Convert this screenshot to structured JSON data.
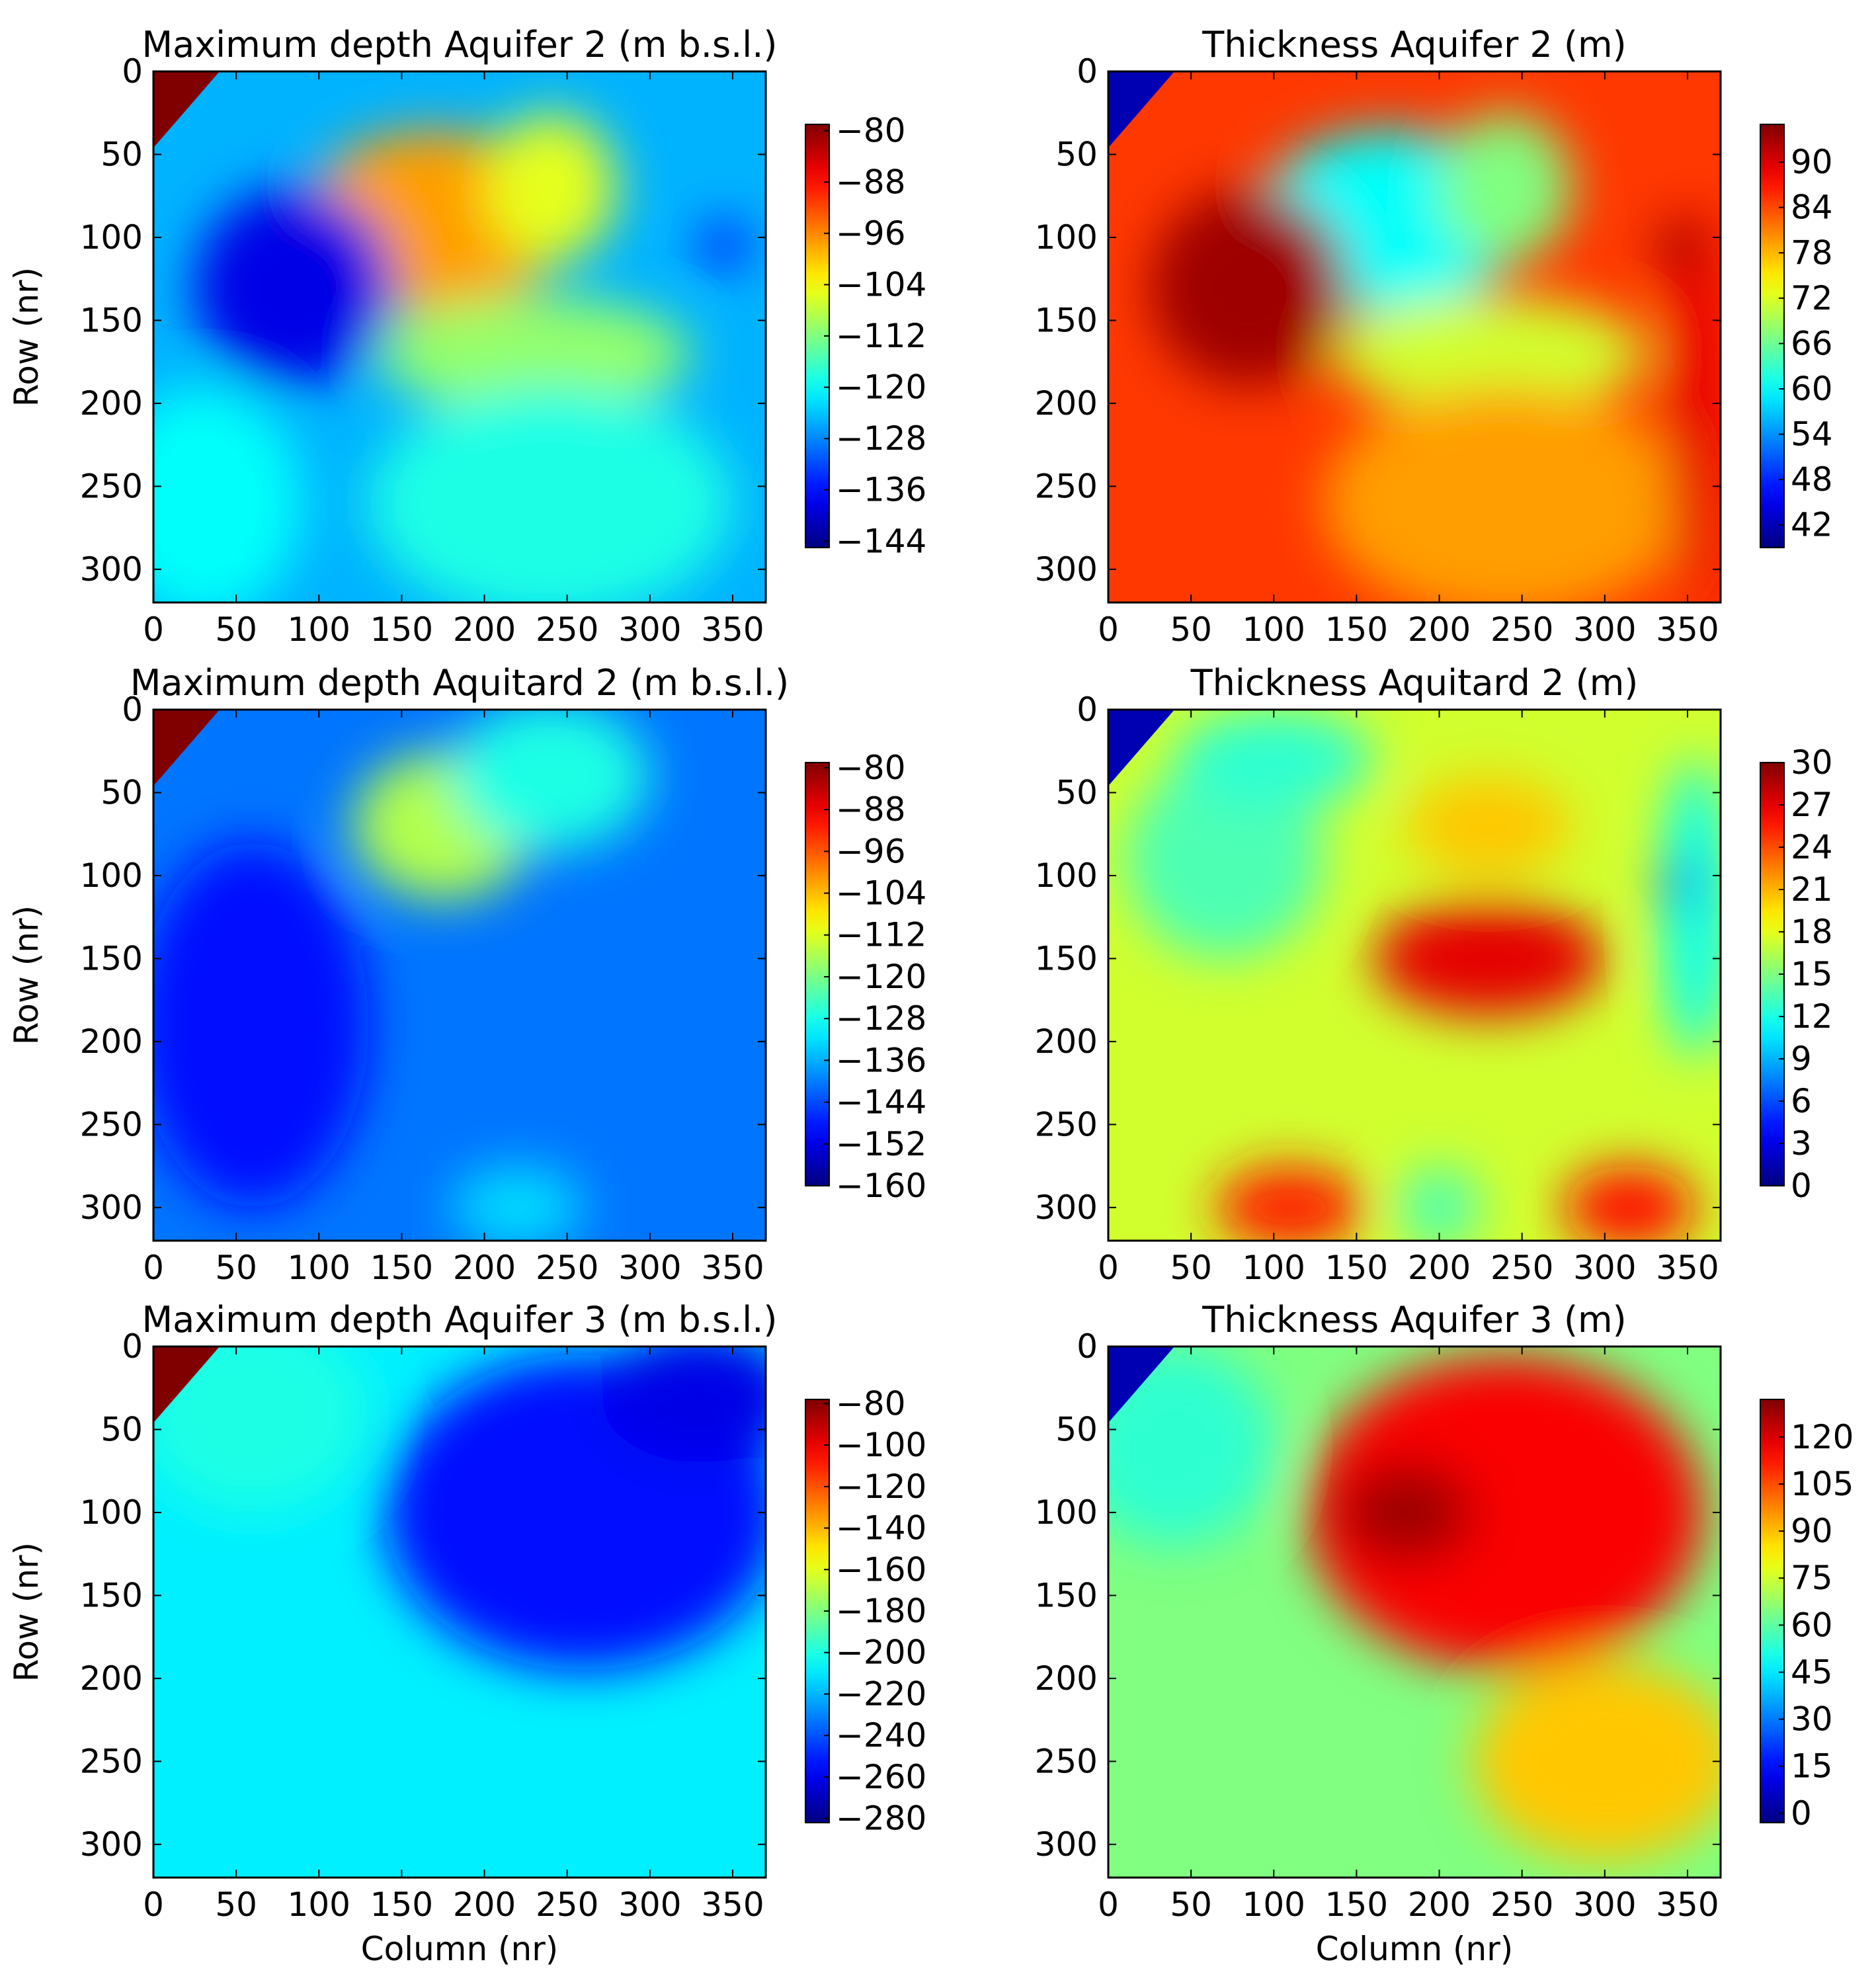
{
  "chart_data": [
    {
      "type": "heatmap",
      "title": "Maximum depth Aquifer 2 (m b.s.l.)",
      "xlabel": "",
      "ylabel": "Row (nr)",
      "xlim": [
        0,
        370
      ],
      "ylim": [
        320,
        0
      ],
      "xticks": [
        "0",
        "50",
        "100",
        "150",
        "200",
        "250",
        "300",
        "350"
      ],
      "yticks": [
        "0",
        "50",
        "100",
        "150",
        "200",
        "250",
        "300"
      ],
      "colorbar": {
        "min": -145,
        "max": -79,
        "ticks": [
          "-80",
          "-88",
          "-96",
          "-104",
          "-112",
          "-120",
          "-128",
          "-136",
          "-144"
        ]
      },
      "colormap": "jet",
      "base_value": 0.3,
      "features": [
        {
          "kind": "blob",
          "x": 170,
          "y": 90,
          "rx": 80,
          "ry": 55,
          "value": 0.72
        },
        {
          "kind": "blob",
          "x": 240,
          "y": 70,
          "rx": 40,
          "ry": 45,
          "value": 0.6
        },
        {
          "kind": "blob",
          "x": 230,
          "y": 170,
          "rx": 95,
          "ry": 35,
          "value": 0.52
        },
        {
          "kind": "blob",
          "x": 240,
          "y": 260,
          "rx": 110,
          "ry": 70,
          "value": 0.4
        },
        {
          "kind": "blob",
          "x": 85,
          "y": 130,
          "rx": 60,
          "ry": 60,
          "value": 0.1
        },
        {
          "kind": "blob",
          "x": 30,
          "y": 260,
          "rx": 60,
          "ry": 70,
          "value": 0.38
        },
        {
          "kind": "blob",
          "x": 345,
          "y": 105,
          "rx": 14,
          "ry": 14,
          "value": 0.12
        },
        {
          "kind": "corner",
          "value": 1.0
        }
      ]
    },
    {
      "type": "heatmap",
      "title": "Thickness Aquifer 2 (m)",
      "xlabel": "",
      "ylabel": "",
      "xlim": [
        0,
        370
      ],
      "ylim": [
        320,
        0
      ],
      "xticks": [
        "0",
        "50",
        "100",
        "150",
        "200",
        "250",
        "300",
        "350"
      ],
      "yticks": [
        "0",
        "50",
        "100",
        "150",
        "200",
        "250",
        "300"
      ],
      "colorbar": {
        "min": 39,
        "max": 95,
        "ticks": [
          "42",
          "48",
          "54",
          "60",
          "66",
          "72",
          "78",
          "84",
          "90"
        ]
      },
      "colormap": "jet",
      "base_value": 0.82,
      "features": [
        {
          "kind": "blob",
          "x": 170,
          "y": 90,
          "rx": 80,
          "ry": 55,
          "value": 0.38
        },
        {
          "kind": "blob",
          "x": 240,
          "y": 70,
          "rx": 40,
          "ry": 45,
          "value": 0.5
        },
        {
          "kind": "blob",
          "x": 230,
          "y": 170,
          "rx": 95,
          "ry": 35,
          "value": 0.58
        },
        {
          "kind": "blob",
          "x": 240,
          "y": 260,
          "rx": 110,
          "ry": 70,
          "value": 0.72
        },
        {
          "kind": "blob",
          "x": 85,
          "y": 130,
          "rx": 60,
          "ry": 60,
          "value": 0.97
        },
        {
          "kind": "blob",
          "x": 355,
          "y": 200,
          "rx": 18,
          "ry": 120,
          "value": 0.9
        },
        {
          "kind": "blob",
          "x": 345,
          "y": 105,
          "rx": 14,
          "ry": 14,
          "value": 0.98
        },
        {
          "kind": "corner",
          "value": 0.05
        }
      ]
    },
    {
      "type": "heatmap",
      "title": "Maximum depth Aquitard 2 (m b.s.l.)",
      "xlabel": "",
      "ylabel": "Row (nr)",
      "xlim": [
        0,
        370
      ],
      "ylim": [
        320,
        0
      ],
      "xticks": [
        "0",
        "50",
        "100",
        "150",
        "200",
        "250",
        "300",
        "350"
      ],
      "yticks": [
        "0",
        "50",
        "100",
        "150",
        "200",
        "250",
        "300"
      ],
      "colorbar": {
        "min": -160,
        "max": -79,
        "ticks": [
          "-80",
          "-88",
          "-96",
          "-104",
          "-112",
          "-120",
          "-128",
          "-136",
          "-144",
          "-152",
          "-160"
        ]
      },
      "colormap": "jet",
      "base_value": 0.24,
      "features": [
        {
          "kind": "blob",
          "x": 175,
          "y": 70,
          "rx": 55,
          "ry": 45,
          "value": 0.55
        },
        {
          "kind": "blob",
          "x": 240,
          "y": 40,
          "rx": 60,
          "ry": 45,
          "value": 0.4
        },
        {
          "kind": "blob",
          "x": 60,
          "y": 190,
          "rx": 70,
          "ry": 110,
          "value": 0.14
        },
        {
          "kind": "blob",
          "x": 220,
          "y": 300,
          "rx": 40,
          "ry": 25,
          "value": 0.34
        },
        {
          "kind": "corner",
          "value": 1.0
        }
      ]
    },
    {
      "type": "heatmap",
      "title": "Thickness Aquitard 2 (m)",
      "xlabel": "",
      "ylabel": "",
      "xlim": [
        0,
        370
      ],
      "ylim": [
        320,
        0
      ],
      "xticks": [
        "0",
        "50",
        "100",
        "150",
        "200",
        "250",
        "300",
        "350"
      ],
      "yticks": [
        "0",
        "50",
        "100",
        "150",
        "200",
        "250",
        "300"
      ],
      "colorbar": {
        "min": 0,
        "max": 30,
        "ticks": [
          "0",
          "3",
          "6",
          "9",
          "12",
          "15",
          "18",
          "21",
          "24",
          "27",
          "30"
        ]
      },
      "colormap": "jet",
      "base_value": 0.58,
      "features": [
        {
          "kind": "blob",
          "x": 230,
          "y": 150,
          "rx": 70,
          "ry": 35,
          "value": 0.9
        },
        {
          "kind": "blob",
          "x": 110,
          "y": 300,
          "rx": 45,
          "ry": 25,
          "value": 0.85
        },
        {
          "kind": "blob",
          "x": 315,
          "y": 300,
          "rx": 40,
          "ry": 25,
          "value": 0.86
        },
        {
          "kind": "blob",
          "x": 70,
          "y": 90,
          "rx": 60,
          "ry": 60,
          "value": 0.45
        },
        {
          "kind": "blob",
          "x": 100,
          "y": 30,
          "rx": 60,
          "ry": 30,
          "value": 0.42
        },
        {
          "kind": "blob",
          "x": 355,
          "y": 120,
          "rx": 20,
          "ry": 90,
          "value": 0.38
        },
        {
          "kind": "blob",
          "x": 200,
          "y": 300,
          "rx": 25,
          "ry": 25,
          "value": 0.45
        },
        {
          "kind": "blob",
          "x": 230,
          "y": 70,
          "rx": 50,
          "ry": 30,
          "value": 0.68
        },
        {
          "kind": "blob",
          "x": 345,
          "y": 105,
          "rx": 12,
          "ry": 12,
          "value": 0.22
        },
        {
          "kind": "corner",
          "value": 0.05
        }
      ]
    },
    {
      "type": "heatmap",
      "title": "Maximum depth Aquifer 3 (m b.s.l.)",
      "xlabel": "Column (nr)",
      "ylabel": "Row (nr)",
      "xlim": [
        0,
        370
      ],
      "ylim": [
        320,
        0
      ],
      "xticks": [
        "0",
        "50",
        "100",
        "150",
        "200",
        "250",
        "300",
        "350"
      ],
      "yticks": [
        "0",
        "50",
        "100",
        "150",
        "200",
        "250",
        "300"
      ],
      "colorbar": {
        "min": -282,
        "max": -78,
        "ticks": [
          "-80",
          "-100",
          "-120",
          "-140",
          "-160",
          "-180",
          "-200",
          "-220",
          "-240",
          "-260",
          "-280"
        ]
      },
      "colormap": "jet",
      "base_value": 0.36,
      "features": [
        {
          "kind": "blob",
          "x": 260,
          "y": 100,
          "rx": 120,
          "ry": 95,
          "value": 0.14
        },
        {
          "kind": "blob",
          "x": 330,
          "y": 30,
          "rx": 60,
          "ry": 40,
          "value": 0.1
        },
        {
          "kind": "blob",
          "x": 60,
          "y": 40,
          "rx": 70,
          "ry": 60,
          "value": 0.4
        },
        {
          "kind": "corner",
          "value": 1.0
        }
      ]
    },
    {
      "type": "heatmap",
      "title": "Thickness Aquifer 3 (m)",
      "xlabel": "Column (nr)",
      "ylabel": "",
      "xlim": [
        0,
        370
      ],
      "ylim": [
        320,
        0
      ],
      "xticks": [
        "0",
        "50",
        "100",
        "150",
        "200",
        "250",
        "300",
        "350"
      ],
      "yticks": [
        "0",
        "50",
        "100",
        "150",
        "200",
        "250",
        "300"
      ],
      "colorbar": {
        "min": -3,
        "max": 132,
        "ticks": [
          "0",
          "15",
          "30",
          "45",
          "60",
          "75",
          "90",
          "105",
          "120"
        ]
      },
      "colormap": "jet",
      "base_value": 0.5,
      "features": [
        {
          "kind": "blob",
          "x": 240,
          "y": 100,
          "rx": 120,
          "ry": 95,
          "value": 0.88
        },
        {
          "kind": "blob",
          "x": 180,
          "y": 100,
          "rx": 40,
          "ry": 30,
          "value": 0.97
        },
        {
          "kind": "blob",
          "x": 300,
          "y": 250,
          "rx": 80,
          "ry": 60,
          "value": 0.68
        },
        {
          "kind": "blob",
          "x": 40,
          "y": 60,
          "rx": 60,
          "ry": 60,
          "value": 0.42
        },
        {
          "kind": "corner",
          "value": 0.05
        }
      ]
    }
  ]
}
